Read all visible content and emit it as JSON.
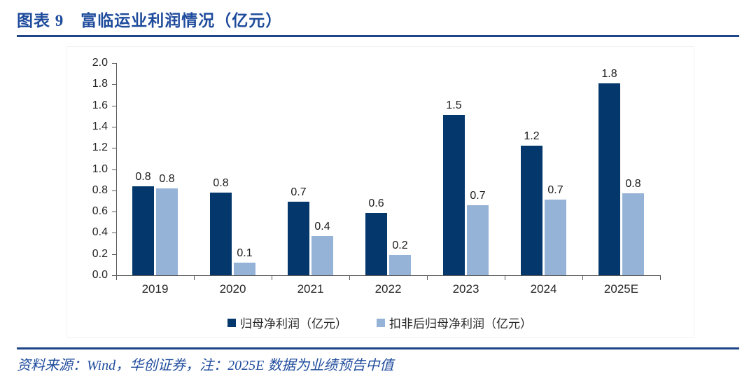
{
  "header": {
    "title": "图表 9　富临运业利润情况（亿元）"
  },
  "footer": {
    "source": "资料来源：Wind，华创证券，注：2025E 数据为业绩预告中值"
  },
  "colors": {
    "title_blue": "#1E4B9C",
    "rule_navy": "#1E4586",
    "axis_gray": "#595959",
    "label_dark": "#262626",
    "series_dark_navy": "#04386C",
    "series_light_blue": "#95B3D7"
  },
  "chart_data": {
    "type": "bar",
    "title": "富临运业利润情况（亿元）",
    "categories": [
      "2019",
      "2020",
      "2021",
      "2022",
      "2023",
      "2024",
      "2025E"
    ],
    "series": [
      {
        "name": "归母净利润（亿元）",
        "color": "#04386C",
        "values": [
          0.84,
          0.78,
          0.69,
          0.59,
          1.51,
          1.22,
          1.81
        ],
        "labels": [
          "0.8",
          "0.8",
          "0.7",
          "0.6",
          "1.5",
          "1.2",
          "1.8"
        ]
      },
      {
        "name": "扣非后归母净利润（亿元）",
        "color": "#95B3D7",
        "values": [
          0.82,
          0.12,
          0.37,
          0.19,
          0.66,
          0.71,
          0.77
        ],
        "labels": [
          "0.8",
          "0.1",
          "0.4",
          "0.2",
          "0.7",
          "0.7",
          "0.8"
        ]
      }
    ],
    "xlabel": "",
    "ylabel": "",
    "ylim": [
      0.0,
      2.0
    ],
    "ytick_step": 0.2,
    "yticks": [
      "0.0",
      "0.2",
      "0.4",
      "0.6",
      "0.8",
      "1.0",
      "1.2",
      "1.4",
      "1.6",
      "1.8",
      "2.0"
    ],
    "grid": false,
    "legend_position": "bottom",
    "value_labels_shown": true
  }
}
